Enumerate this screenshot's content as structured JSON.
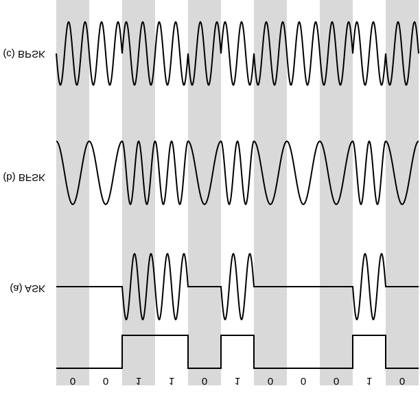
{
  "labels": {
    "bpsk": "(c) BPSK",
    "bfsk": "(b) BFSK",
    "ask": "(a) ASK"
  },
  "bits": [
    "0",
    "0",
    "1",
    "1",
    "0",
    "1",
    "0",
    "0",
    "0",
    "1",
    "0"
  ]
}
